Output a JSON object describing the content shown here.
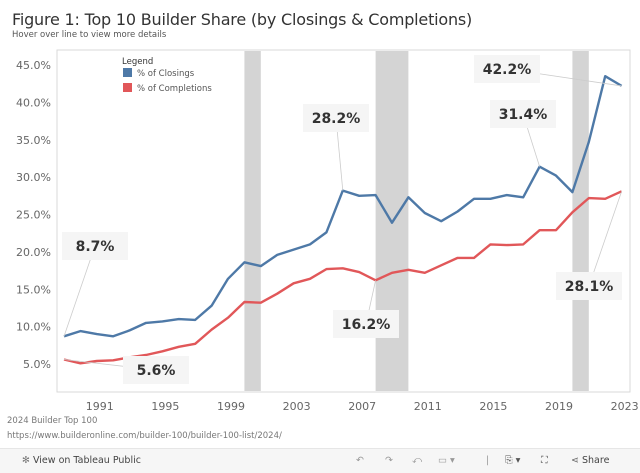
{
  "header": {
    "title": "Figure 1: Top 10 Builder Share (by Closings & Completions)",
    "subtitle": "Hover over line to view more details"
  },
  "chart_data": {
    "type": "line",
    "title": "Figure 1: Top 10 Builder Share (by Closings & Completions)",
    "xlabel": "",
    "ylabel": "",
    "x": [
      1989,
      1990,
      1991,
      1992,
      1993,
      1994,
      1995,
      1996,
      1997,
      1998,
      1999,
      2000,
      2001,
      2002,
      2003,
      2004,
      2005,
      2006,
      2007,
      2008,
      2009,
      2010,
      2011,
      2012,
      2013,
      2014,
      2015,
      2016,
      2017,
      2018,
      2019,
      2020,
      2021,
      2022,
      2023
    ],
    "xlim": [
      1988.6,
      2023.6
    ],
    "x_ticks": [
      "1991",
      "1995",
      "1999",
      "2003",
      "2007",
      "2011",
      "2015",
      "2019",
      "2023"
    ],
    "ylim": [
      3.0,
      47.0
    ],
    "y_ticks": [
      "45.0%",
      "40.0%",
      "35.0%",
      "30.0%",
      "25.0%",
      "20.0%",
      "15.0%",
      "10.0%",
      "5.0%"
    ],
    "y_tick_values": [
      45,
      40,
      35,
      30,
      25,
      20,
      15,
      10,
      5
    ],
    "grid": false,
    "legend": {
      "title": "Legend",
      "placement": "top-left"
    },
    "series": [
      {
        "name": "% of Closings",
        "color": "#4e79a7",
        "values": [
          8.7,
          9.4,
          9.0,
          8.7,
          9.5,
          10.5,
          10.7,
          11.0,
          10.9,
          12.8,
          16.4,
          18.6,
          18.1,
          19.6,
          20.3,
          21.0,
          22.6,
          28.2,
          27.5,
          27.6,
          23.9,
          27.3,
          25.2,
          24.1,
          25.4,
          27.1,
          27.1,
          27.6,
          27.3,
          31.4,
          30.2,
          28.0,
          34.7,
          43.5,
          42.2
        ]
      },
      {
        "name": "% of Completions",
        "color": "#e15759",
        "values": [
          5.6,
          5.1,
          5.4,
          5.5,
          5.9,
          6.2,
          6.7,
          7.3,
          7.7,
          9.6,
          11.2,
          13.3,
          13.2,
          14.4,
          15.8,
          16.4,
          17.7,
          17.8,
          17.3,
          16.2,
          17.2,
          17.6,
          17.2,
          18.2,
          19.2,
          19.2,
          21.0,
          20.9,
          21.0,
          22.9,
          22.9,
          25.3,
          27.2,
          27.1,
          28.1
        ]
      }
    ],
    "shaded_periods": [
      [
        2000,
        2001
      ],
      [
        2008,
        2010
      ],
      [
        2020,
        2021
      ]
    ],
    "shade_color": "#d4d4d4",
    "annotations": [
      {
        "series": 0,
        "year": 1989,
        "text": "8.7%"
      },
      {
        "series": 1,
        "year": 1989,
        "text": "5.6%"
      },
      {
        "series": 0,
        "year": 2006,
        "text": "28.2%"
      },
      {
        "series": 1,
        "year": 2008,
        "text": "16.2%"
      },
      {
        "series": 0,
        "year": 2018,
        "text": "31.4%"
      },
      {
        "series": 0,
        "year": 2023,
        "text": "42.2%"
      },
      {
        "series": 1,
        "year": 2023,
        "text": "28.1%"
      }
    ]
  },
  "footer": {
    "source": "2024 Builder Top 100",
    "url": "https://www.builderonline.com/builder-100/builder-100-list/2024/"
  },
  "toolbar": {
    "view_label": "View on Tableau Public",
    "share_label": "Share"
  }
}
